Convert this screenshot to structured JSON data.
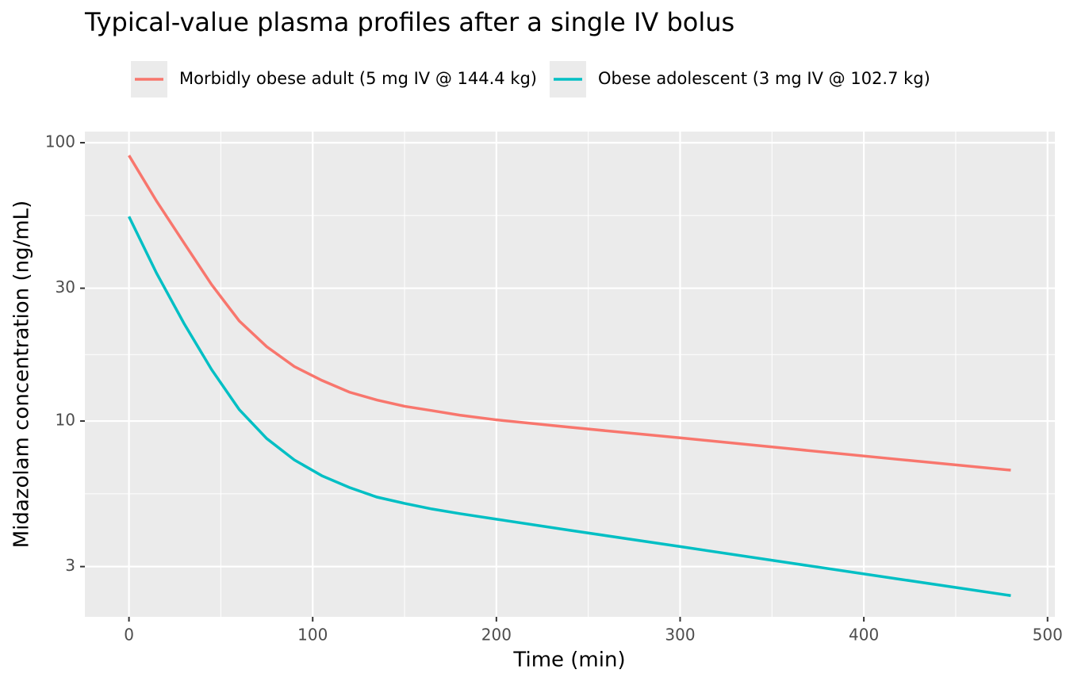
{
  "chart_data": {
    "type": "line",
    "title": "Typical-value plasma profiles after a single IV bolus",
    "x_label": "Time (min)",
    "y_label": "Midazolam concentration (ng/mL)",
    "x": [
      0,
      15,
      30,
      45,
      60,
      75,
      90,
      105,
      120,
      135,
      150,
      165,
      180,
      200,
      240,
      300,
      360,
      420,
      480
    ],
    "series": [
      {
        "name": "Morbidly obese adult (5 mg IV @ 144.4 kg)",
        "color": "#F8766D",
        "values": [
          90,
          61.7,
          43.6,
          30.9,
          22.9,
          18.5,
          15.7,
          14.0,
          12.7,
          11.9,
          11.3,
          10.9,
          10.5,
          10.1,
          9.5,
          8.7,
          7.95,
          7.27,
          6.66
        ]
      },
      {
        "name": "Obese adolescent (3 mg IV @ 102.7 kg)",
        "color": "#00BFC4",
        "values": [
          54.3,
          34,
          22.4,
          15.3,
          11.0,
          8.65,
          7.25,
          6.36,
          5.77,
          5.33,
          5.06,
          4.83,
          4.65,
          4.44,
          4.05,
          3.54,
          3.09,
          2.7,
          2.36
        ]
      }
    ],
    "xlim": [
      -24,
      504
    ],
    "xticks": [
      0,
      100,
      200,
      300,
      400,
      500
    ],
    "ylim": [
      1.98,
      109.6
    ],
    "yticks": [
      3,
      10,
      30,
      100
    ],
    "log_y": true,
    "grid": true,
    "legend": "top"
  }
}
